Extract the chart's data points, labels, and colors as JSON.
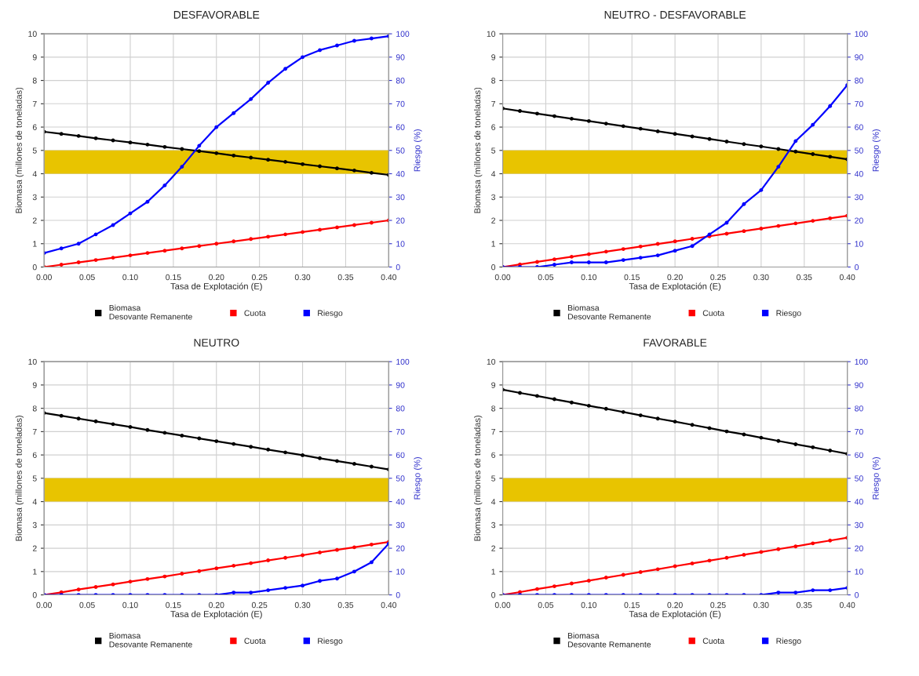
{
  "chart_data": [
    {
      "type": "line",
      "title": "DESFAVORABLE",
      "xlabel": "Tasa de Explotación (E)",
      "ylabel": "Biomasa (millones de toneladas)",
      "y2label": "Riesgo (%)",
      "x": [
        0,
        0.02,
        0.04,
        0.06,
        0.08,
        0.1,
        0.12,
        0.14,
        0.16,
        0.18,
        0.2,
        0.22,
        0.24,
        0.26,
        0.28,
        0.3,
        0.32,
        0.34,
        0.36,
        0.38,
        0.4
      ],
      "series": [
        {
          "name": "Biomasa\nDesovante Remanente",
          "color": "#000000",
          "values": [
            5.8,
            5.71,
            5.62,
            5.52,
            5.43,
            5.34,
            5.25,
            5.15,
            5.06,
            4.97,
            4.88,
            4.78,
            4.69,
            4.6,
            4.51,
            4.41,
            4.32,
            4.23,
            4.14,
            4.04,
            3.95
          ]
        },
        {
          "name": "Cuota",
          "color": "#ff0000",
          "values": [
            0,
            0.1,
            0.2,
            0.3,
            0.4,
            0.5,
            0.6,
            0.7,
            0.8,
            0.9,
            1.0,
            1.1,
            1.2,
            1.3,
            1.4,
            1.5,
            1.6,
            1.7,
            1.8,
            1.9,
            2.0
          ]
        },
        {
          "name": "Riesgo",
          "color": "#0000ff",
          "axis": "y2",
          "values": [
            6,
            8,
            10,
            14,
            18,
            23,
            28,
            35,
            43,
            52,
            60,
            66,
            72,
            79,
            85,
            90,
            93,
            95,
            97,
            98,
            99
          ]
        }
      ],
      "xlim": [
        0,
        0.4
      ],
      "ylim": [
        0,
        10
      ],
      "y2lim": [
        0,
        100
      ],
      "xticks": [
        {
          "value": 0,
          "label": "0.00"
        },
        {
          "value": 0.05,
          "label": "0.05"
        },
        {
          "value": 0.1,
          "label": "0.10"
        },
        {
          "value": 0.15,
          "label": "0.15"
        },
        {
          "value": 0.2,
          "label": "0.20"
        },
        {
          "value": 0.25,
          "label": "0.25"
        },
        {
          "value": 0.3,
          "label": "0.30"
        },
        {
          "value": 0.35,
          "label": "0.35"
        },
        {
          "value": 0.4,
          "label": "0.40"
        }
      ],
      "yticks": [
        0,
        1,
        2,
        3,
        4,
        5,
        6,
        7,
        8,
        9,
        10
      ],
      "y2ticks": [
        0,
        10,
        20,
        30,
        40,
        50,
        60,
        70,
        80,
        90,
        100
      ],
      "bands": [
        {
          "axis": "y",
          "from": 4,
          "to": 5,
          "color": "#e8c400"
        }
      ],
      "grid": true,
      "legend": "bottom",
      "marker": "circle"
    },
    {
      "type": "line",
      "title": "NEUTRO - DESFAVORABLE",
      "xlabel": "Tasa de Explotación (E)",
      "ylabel": "Biomasa (millones de toneladas)",
      "y2label": "Riesgo (%)",
      "x": [
        0,
        0.02,
        0.04,
        0.06,
        0.08,
        0.1,
        0.12,
        0.14,
        0.16,
        0.18,
        0.2,
        0.22,
        0.24,
        0.26,
        0.28,
        0.3,
        0.32,
        0.34,
        0.36,
        0.38,
        0.4
      ],
      "series": [
        {
          "name": "Biomasa\nDesovante Remanente",
          "color": "#000000",
          "values": [
            6.8,
            6.69,
            6.58,
            6.47,
            6.36,
            6.26,
            6.15,
            6.04,
            5.93,
            5.82,
            5.71,
            5.6,
            5.49,
            5.38,
            5.27,
            5.17,
            5.06,
            4.95,
            4.84,
            4.73,
            4.62
          ]
        },
        {
          "name": "Cuota",
          "color": "#ff0000",
          "values": [
            0,
            0.11,
            0.22,
            0.33,
            0.44,
            0.55,
            0.66,
            0.77,
            0.88,
            0.99,
            1.1,
            1.21,
            1.32,
            1.43,
            1.54,
            1.65,
            1.76,
            1.87,
            1.98,
            2.09,
            2.2
          ]
        },
        {
          "name": "Riesgo",
          "color": "#0000ff",
          "axis": "y2",
          "values": [
            0,
            0,
            0,
            1,
            2,
            2,
            2,
            3,
            4,
            5,
            7,
            9,
            14,
            19,
            27,
            33,
            43,
            54,
            61,
            69,
            78
          ]
        }
      ],
      "xlim": [
        0,
        0.4
      ],
      "ylim": [
        0,
        10
      ],
      "y2lim": [
        0,
        100
      ],
      "xticks": [
        {
          "value": 0,
          "label": "0.00"
        },
        {
          "value": 0.05,
          "label": "0.05"
        },
        {
          "value": 0.1,
          "label": "0.10"
        },
        {
          "value": 0.15,
          "label": "0.15"
        },
        {
          "value": 0.2,
          "label": "0.20"
        },
        {
          "value": 0.25,
          "label": "0.25"
        },
        {
          "value": 0.3,
          "label": "0.30"
        },
        {
          "value": 0.35,
          "label": "0.35"
        },
        {
          "value": 0.4,
          "label": "0.40"
        }
      ],
      "yticks": [
        0,
        1,
        2,
        3,
        4,
        5,
        6,
        7,
        8,
        9,
        10
      ],
      "y2ticks": [
        0,
        10,
        20,
        30,
        40,
        50,
        60,
        70,
        80,
        90,
        100
      ],
      "bands": [
        {
          "axis": "y",
          "from": 4,
          "to": 5,
          "color": "#e8c400"
        }
      ],
      "grid": true,
      "legend": "bottom",
      "marker": "circle"
    },
    {
      "type": "line",
      "title": "NEUTRO",
      "xlabel": "Tasa de Explotación (E)",
      "ylabel": "Biomasa (millones de toneladas)",
      "y2label": "Riesgo (%)",
      "x": [
        0,
        0.02,
        0.04,
        0.06,
        0.08,
        0.1,
        0.12,
        0.14,
        0.16,
        0.18,
        0.2,
        0.22,
        0.24,
        0.26,
        0.28,
        0.3,
        0.32,
        0.34,
        0.36,
        0.38,
        0.4
      ],
      "series": [
        {
          "name": "Biomasa\nDesovante Remanente",
          "color": "#000000",
          "values": [
            7.8,
            7.68,
            7.56,
            7.44,
            7.32,
            7.2,
            7.07,
            6.95,
            6.83,
            6.71,
            6.59,
            6.47,
            6.35,
            6.23,
            6.11,
            5.99,
            5.86,
            5.74,
            5.62,
            5.5,
            5.38
          ]
        },
        {
          "name": "Cuota",
          "color": "#ff0000",
          "values": [
            0,
            0.11,
            0.23,
            0.34,
            0.45,
            0.57,
            0.68,
            0.79,
            0.91,
            1.02,
            1.14,
            1.25,
            1.36,
            1.48,
            1.59,
            1.7,
            1.82,
            1.93,
            2.04,
            2.16,
            2.27
          ]
        },
        {
          "name": "Riesgo",
          "color": "#0000ff",
          "axis": "y2",
          "values": [
            0,
            0,
            0,
            0,
            0,
            0,
            0,
            0,
            0,
            0,
            0,
            1,
            1,
            2,
            3,
            4,
            6,
            7,
            10,
            14,
            22
          ]
        }
      ],
      "xlim": [
        0,
        0.4
      ],
      "ylim": [
        0,
        10
      ],
      "y2lim": [
        0,
        100
      ],
      "xticks": [
        {
          "value": 0,
          "label": "0.00"
        },
        {
          "value": 0.05,
          "label": "0.05"
        },
        {
          "value": 0.1,
          "label": "0.10"
        },
        {
          "value": 0.15,
          "label": "0.15"
        },
        {
          "value": 0.2,
          "label": "0.20"
        },
        {
          "value": 0.25,
          "label": "0.25"
        },
        {
          "value": 0.3,
          "label": "0.30"
        },
        {
          "value": 0.35,
          "label": "0.35"
        },
        {
          "value": 0.4,
          "label": "0.40"
        }
      ],
      "yticks": [
        0,
        1,
        2,
        3,
        4,
        5,
        6,
        7,
        8,
        9,
        10
      ],
      "y2ticks": [
        0,
        10,
        20,
        30,
        40,
        50,
        60,
        70,
        80,
        90,
        100
      ],
      "bands": [
        {
          "axis": "y",
          "from": 4,
          "to": 5,
          "color": "#e8c400"
        }
      ],
      "grid": true,
      "legend": "bottom",
      "marker": "circle"
    },
    {
      "type": "line",
      "title": "FAVORABLE",
      "xlabel": "Tasa de Explotación (E)",
      "ylabel": "Biomasa (millones de toneladas)",
      "y2label": "Riesgo (%)",
      "x": [
        0,
        0.02,
        0.04,
        0.06,
        0.08,
        0.1,
        0.12,
        0.14,
        0.16,
        0.18,
        0.2,
        0.22,
        0.24,
        0.26,
        0.28,
        0.3,
        0.32,
        0.34,
        0.36,
        0.38,
        0.4
      ],
      "series": [
        {
          "name": "Biomasa\nDesovante Remanente",
          "color": "#000000",
          "values": [
            8.8,
            8.66,
            8.53,
            8.39,
            8.25,
            8.11,
            7.98,
            7.84,
            7.7,
            7.56,
            7.43,
            7.29,
            7.15,
            7.01,
            6.88,
            6.74,
            6.6,
            6.46,
            6.33,
            6.19,
            6.05
          ]
        },
        {
          "name": "Cuota",
          "color": "#ff0000",
          "values": [
            0,
            0.12,
            0.25,
            0.37,
            0.49,
            0.61,
            0.74,
            0.86,
            0.98,
            1.1,
            1.23,
            1.35,
            1.47,
            1.59,
            1.72,
            1.84,
            1.96,
            2.08,
            2.21,
            2.33,
            2.45
          ]
        },
        {
          "name": "Riesgo",
          "color": "#0000ff",
          "axis": "y2",
          "values": [
            0,
            0,
            0,
            0,
            0,
            0,
            0,
            0,
            0,
            0,
            0,
            0,
            0,
            0,
            0,
            0,
            1,
            1,
            2,
            2,
            3
          ]
        }
      ],
      "xlim": [
        0,
        0.4
      ],
      "ylim": [
        0,
        10
      ],
      "y2lim": [
        0,
        100
      ],
      "xticks": [
        {
          "value": 0,
          "label": "0.00"
        },
        {
          "value": 0.05,
          "label": "0.05"
        },
        {
          "value": 0.1,
          "label": "0.10"
        },
        {
          "value": 0.15,
          "label": "0.15"
        },
        {
          "value": 0.2,
          "label": "0.20"
        },
        {
          "value": 0.25,
          "label": "0.25"
        },
        {
          "value": 0.3,
          "label": "0.30"
        },
        {
          "value": 0.35,
          "label": "0.35"
        },
        {
          "value": 0.4,
          "label": "0.40"
        }
      ],
      "yticks": [
        0,
        1,
        2,
        3,
        4,
        5,
        6,
        7,
        8,
        9,
        10
      ],
      "y2ticks": [
        0,
        10,
        20,
        30,
        40,
        50,
        60,
        70,
        80,
        90,
        100
      ],
      "bands": [
        {
          "axis": "y",
          "from": 4,
          "to": 5,
          "color": "#e8c400"
        }
      ],
      "grid": true,
      "legend": "bottom",
      "marker": "circle"
    }
  ]
}
